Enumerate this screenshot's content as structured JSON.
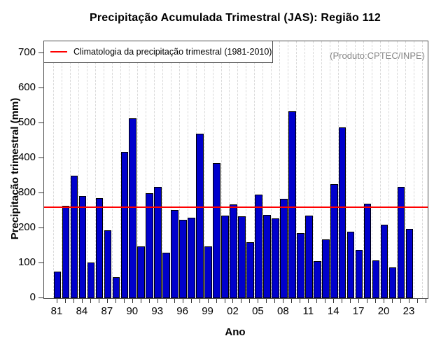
{
  "title": "Precipitação Acumulada Trimestral (JAS): Região 112",
  "watermark": "(Produto:CPTEC/INPE)",
  "legend": {
    "label": "Climatologia da precipitação trimestral (1981-2010)"
  },
  "colors": {
    "bar_fill": "#0000cc",
    "bar_border": "#000000",
    "climatology_line": "#ff0000",
    "gridline": "#d9d9d9",
    "watermark_text": "#878787",
    "tick": "#333333"
  },
  "chart_data": {
    "type": "bar",
    "title": "Precipitação Acumulada Trimestral (JAS): Região 112",
    "xlabel": "Ano",
    "ylabel": "Precipitação trimestral (mm)",
    "ylim": [
      0,
      700
    ],
    "yticks": [
      0,
      100,
      200,
      300,
      400,
      500,
      600,
      700
    ],
    "x_tick_labels": [
      "81",
      "84",
      "87",
      "90",
      "93",
      "96",
      "99",
      "02",
      "05",
      "08",
      "11",
      "14",
      "17",
      "20",
      "23"
    ],
    "grid": "vertical-dashed",
    "legend_position": "topleft",
    "climatology_mm": 260,
    "years": [
      1981,
      1982,
      1983,
      1984,
      1985,
      1986,
      1987,
      1988,
      1989,
      1990,
      1991,
      1992,
      1993,
      1994,
      1995,
      1996,
      1997,
      1998,
      1999,
      2000,
      2001,
      2002,
      2003,
      2004,
      2005,
      2006,
      2007,
      2008,
      2009,
      2010,
      2011,
      2012,
      2013,
      2014,
      2015,
      2016,
      2017,
      2018,
      2019,
      2020,
      2021,
      2022,
      2023
    ],
    "values": [
      75,
      263,
      349,
      291,
      102,
      285,
      193,
      59,
      418,
      514,
      148,
      300,
      317,
      130,
      252,
      223,
      230,
      470,
      148,
      385,
      235,
      267,
      233,
      160,
      295,
      237,
      228,
      283,
      534,
      185,
      235,
      106,
      168,
      325,
      488,
      190,
      137,
      270,
      108,
      210,
      87,
      318,
      198
    ]
  }
}
